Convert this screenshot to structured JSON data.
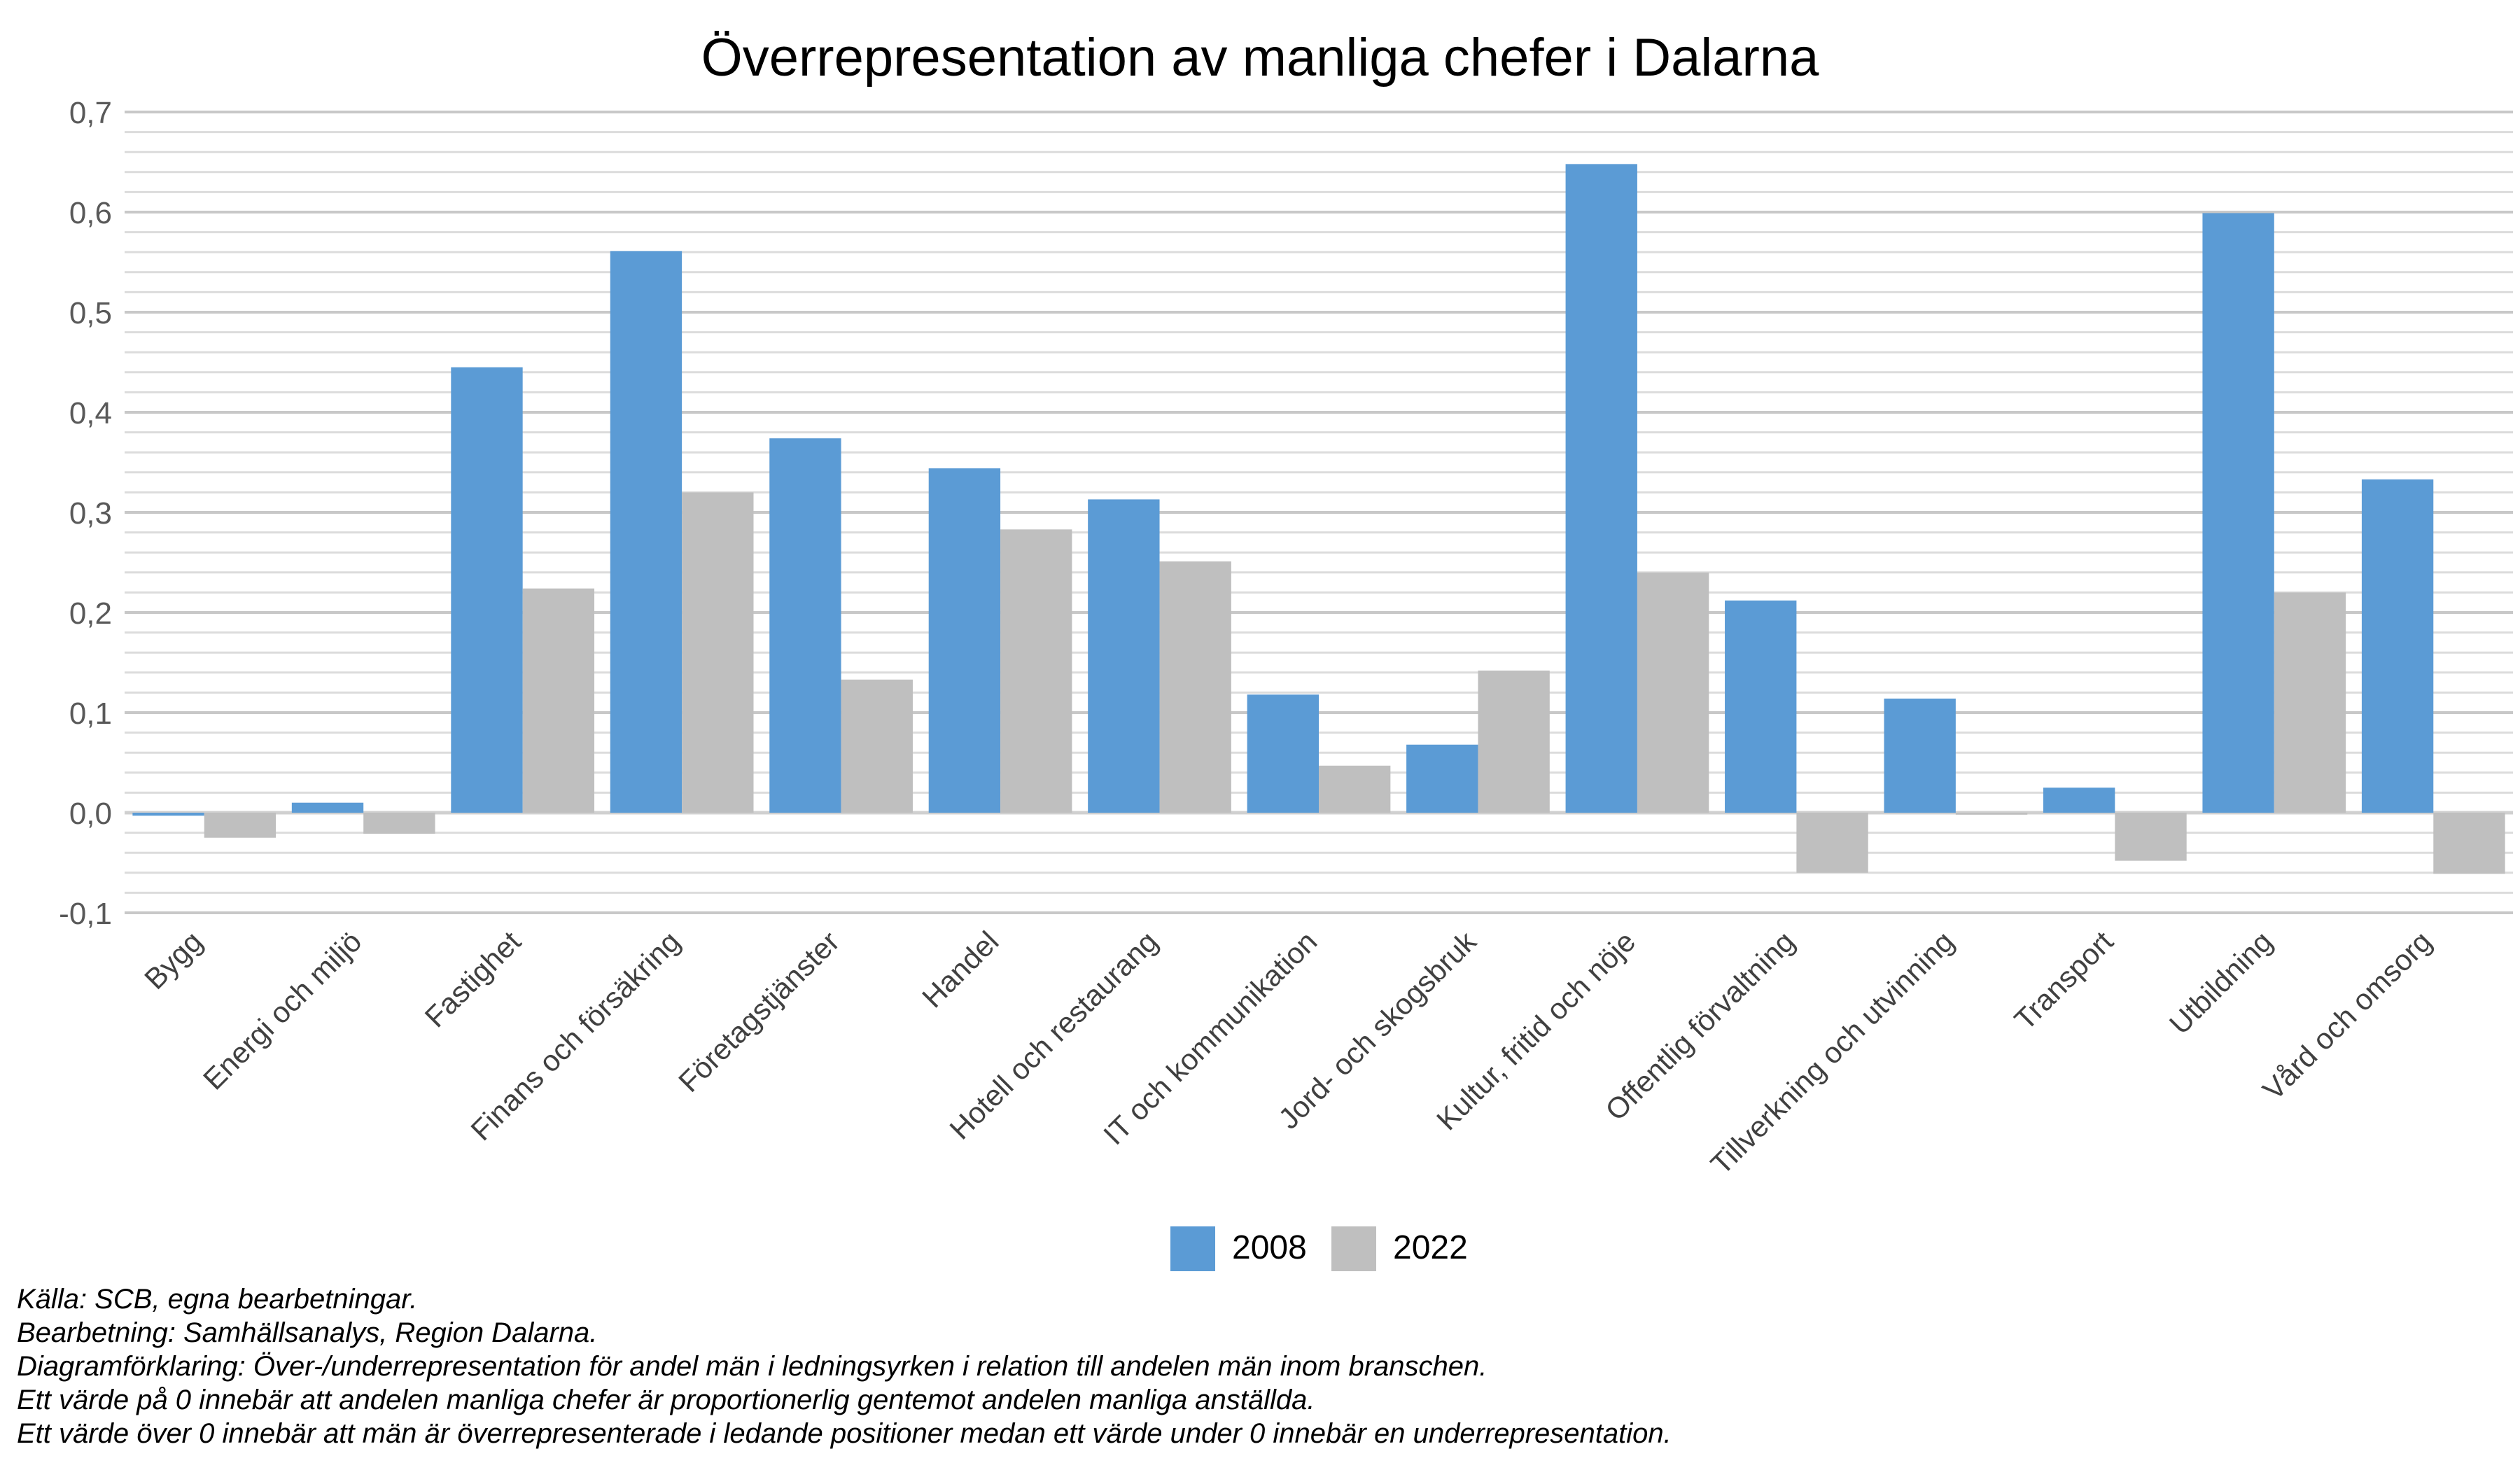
{
  "chart_data": {
    "type": "bar",
    "title": "Överrepresentation av manliga chefer i Dalarna",
    "xlabel": "",
    "ylabel": "",
    "ylim": [
      -0.1,
      0.7
    ],
    "y_ticks": [
      "-0,1",
      "0,0",
      "0,1",
      "0,2",
      "0,3",
      "0,4",
      "0,5",
      "0,6",
      "0,7"
    ],
    "grid": true,
    "legend_position": "bottom",
    "categories": [
      "Bygg",
      "Energi och miljö",
      "Fastighet",
      "Finans och försäkring",
      "Företagstjänster",
      "Handel",
      "Hotell och restaurang",
      "IT och kommunikation",
      "Jord- och skogsbruk",
      "Kultur, fritid och nöje",
      "Offentlig förvaltning",
      "Tillverkning och utvinning",
      "Transport",
      "Utbildning",
      "Vård och omsorg"
    ],
    "series": [
      {
        "name": "2008",
        "color": "#5b9bd5",
        "values": [
          -0.003,
          0.01,
          0.445,
          0.561,
          0.374,
          0.344,
          0.313,
          0.118,
          0.068,
          0.648,
          0.212,
          0.114,
          0.025,
          0.599,
          0.333
        ]
      },
      {
        "name": "2022",
        "color": "#bfbfbf",
        "values": [
          -0.025,
          -0.021,
          0.224,
          0.32,
          0.133,
          0.283,
          0.251,
          0.047,
          0.142,
          0.24,
          -0.06,
          -0.002,
          -0.048,
          0.22,
          -0.061
        ]
      }
    ]
  },
  "notes": [
    "Källa: SCB, egna bearbetningar.",
    "Bearbetning: Samhällsanalys, Region Dalarna.",
    "Diagramförklaring: Över-/underrepresentation för andel män i ledningsyrken i relation till andelen män inom branschen.",
    "Ett värde på 0 innebär att andelen manliga chefer är proportionerlig gentemot andelen manliga anställda.",
    "Ett värde över 0 innebär att män är överrepresenterade i ledande positioner medan ett värde under 0 innebär en underrepresentation."
  ]
}
